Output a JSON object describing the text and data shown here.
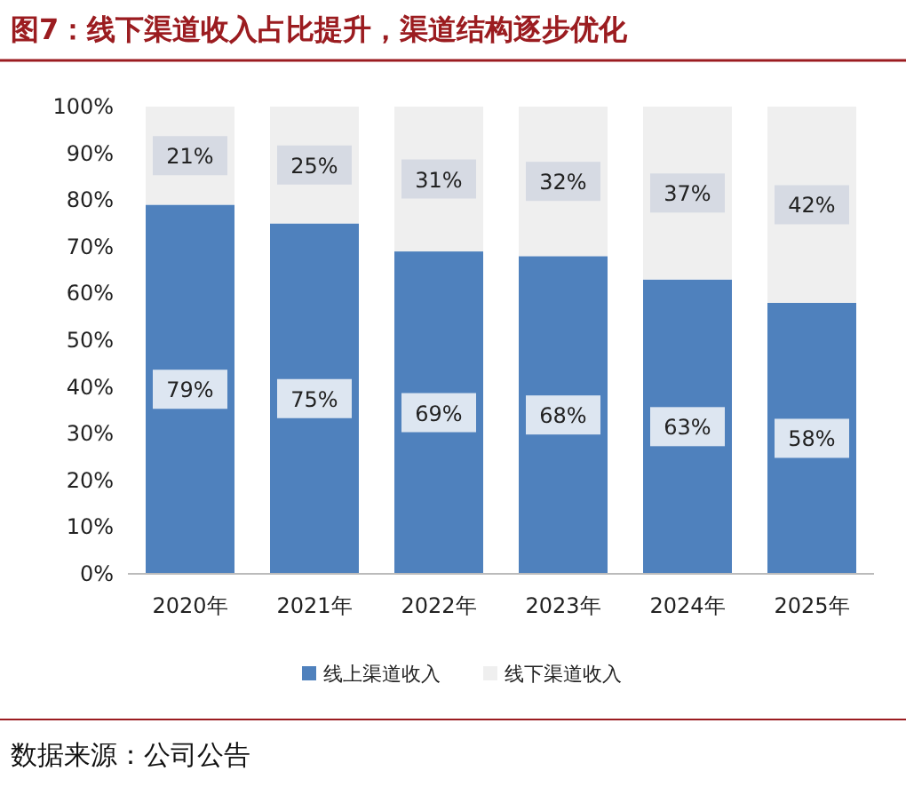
{
  "chart_data": {
    "type": "bar",
    "stacked": true,
    "title": "图7：线下渠道收入占比提升，渠道结构逐步优化",
    "categories": [
      "2020年",
      "2021年",
      "2022年",
      "2023年",
      "2024年",
      "2025年"
    ],
    "series": [
      {
        "name": "线上渠道收入",
        "color": "#4f81bd",
        "values": [
          79,
          75,
          69,
          68,
          63,
          58
        ],
        "value_labels": [
          "79%",
          "75%",
          "69%",
          "68%",
          "63%",
          "58%"
        ]
      },
      {
        "name": "线下渠道收入",
        "color": "#efefef",
        "values": [
          21,
          25,
          31,
          32,
          37,
          42
        ],
        "value_labels": [
          "21%",
          "25%",
          "31%",
          "32%",
          "37%",
          "42%"
        ]
      }
    ],
    "ylim": [
      0,
      100
    ],
    "yticks": [
      {
        "value": 0,
        "label": "0%"
      },
      {
        "value": 10,
        "label": "10%"
      },
      {
        "value": 20,
        "label": "20%"
      },
      {
        "value": 30,
        "label": "30%"
      },
      {
        "value": 40,
        "label": "40%"
      },
      {
        "value": 50,
        "label": "50%"
      },
      {
        "value": 60,
        "label": "60%"
      },
      {
        "value": 70,
        "label": "70%"
      },
      {
        "value": 80,
        "label": "80%"
      },
      {
        "value": 90,
        "label": "90%"
      },
      {
        "value": 100,
        "label": "100%"
      }
    ],
    "grid": false,
    "legend": "bottom",
    "annotations": [
      "数据来源：公司公告"
    ]
  }
}
